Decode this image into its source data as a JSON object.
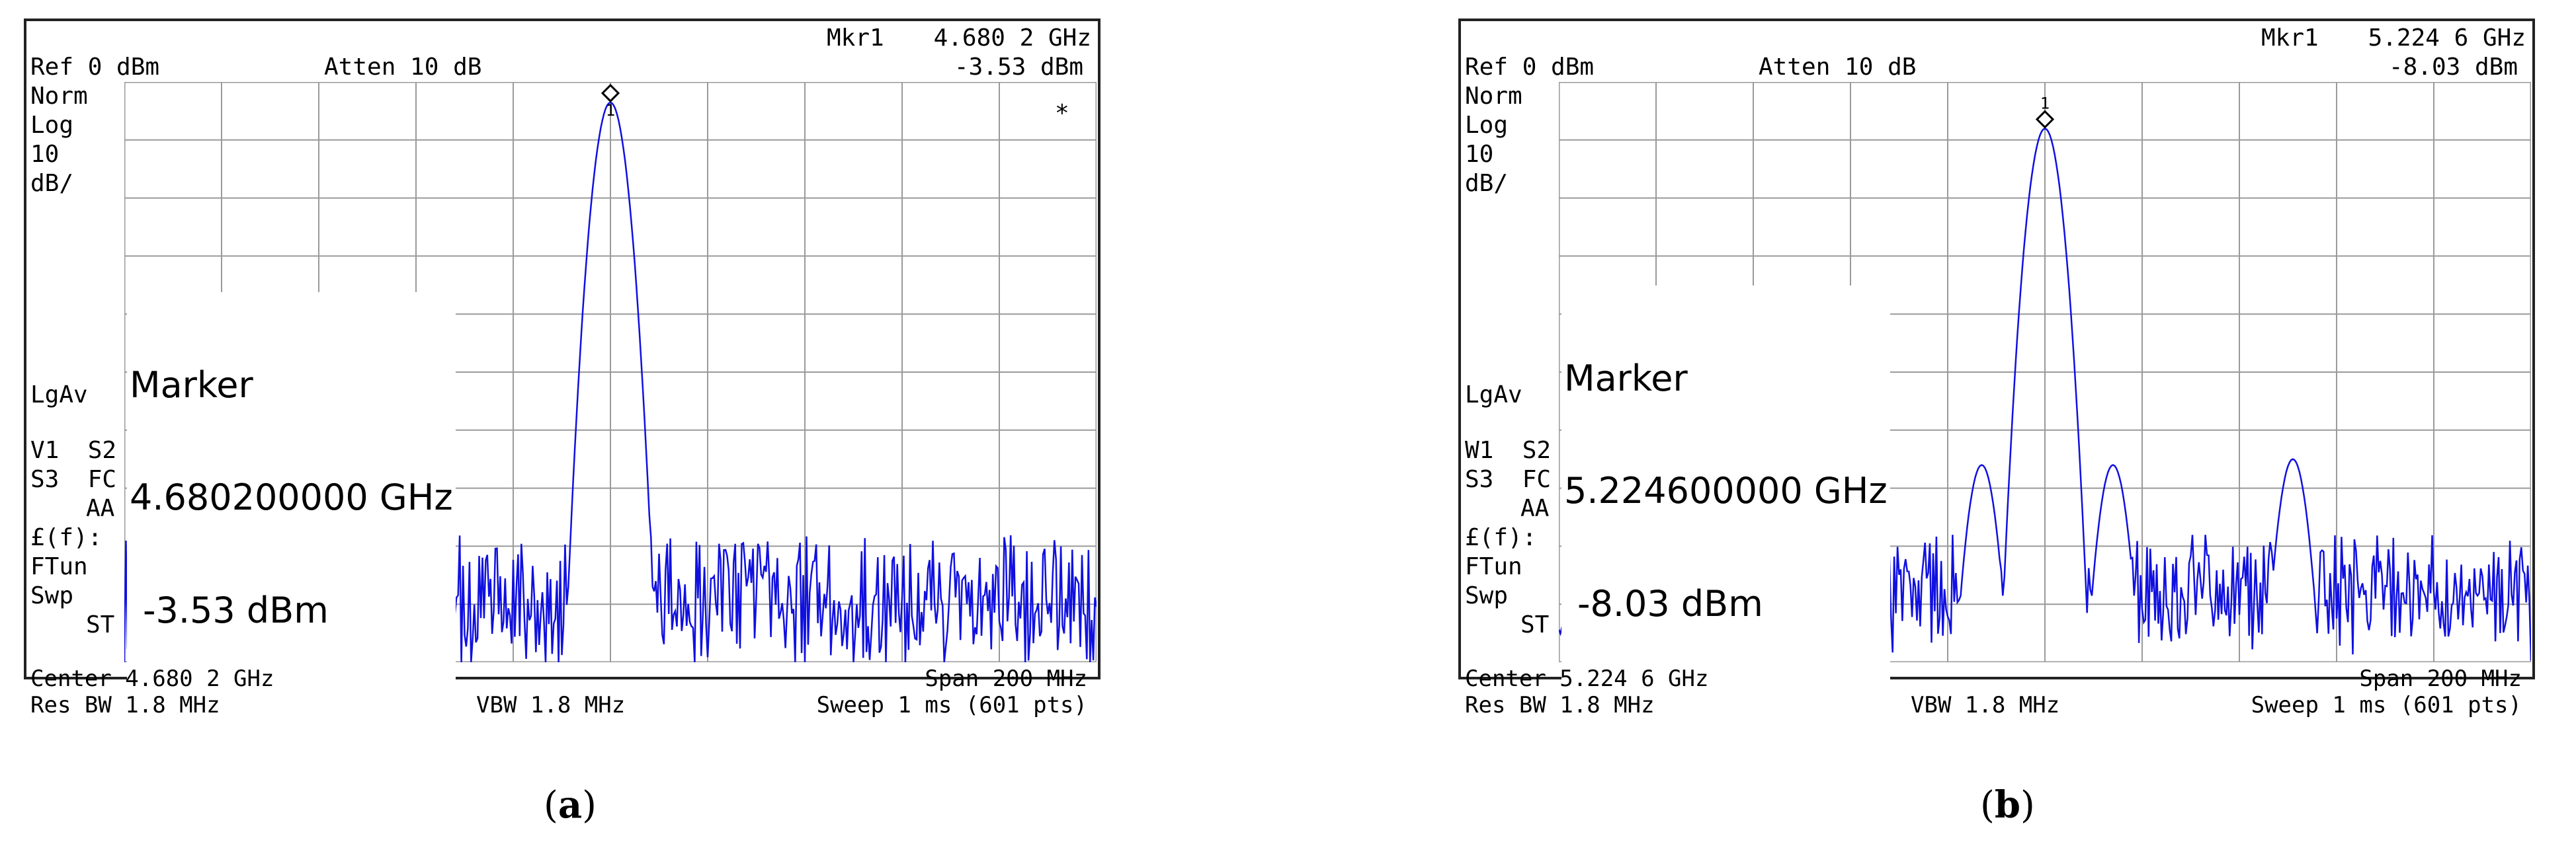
{
  "colors": {
    "trace": "#1010e0",
    "grid": "#9a9a9a",
    "frame": "#222222"
  },
  "panels": [
    {
      "mkr_label": "Mkr1",
      "mkr_freq": "4.680 2 GHz",
      "mkr_level": "-3.53 dBm",
      "ref": "Ref 0 dBm",
      "atten": "Atten 10 dB",
      "side": [
        "Norm",
        "Log",
        "10",
        "dB/",
        "LgAv",
        "V1  S2",
        "S3  FC",
        "AA",
        "£(f):",
        "FTun",
        "Swp",
        "ST"
      ],
      "star": "*",
      "marker_title": "Marker",
      "marker_freq": "4.680200000 GHz",
      "marker_level": "-3.53 dBm",
      "center": "Center 4.680 2 GHz",
      "span": "Span 200 MHz",
      "res_bw": "Res BW 1.8 MHz",
      "vbw": "VBW 1.8 MHz",
      "sweep": "Sweep 1 ms (601 pts)",
      "caption_letter": "a"
    },
    {
      "mkr_label": "Mkr1",
      "mkr_freq": "5.224 6 GHz",
      "mkr_level": "-8.03 dBm",
      "ref": "Ref 0 dBm",
      "atten": "Atten 10 dB",
      "side": [
        "Norm",
        "Log",
        "10",
        "dB/",
        "LgAv",
        "W1  S2",
        "S3  FC",
        "AA",
        "£(f):",
        "FTun",
        "Swp",
        "ST"
      ],
      "star": "",
      "marker_title": "Marker",
      "marker_freq": "5.224600000 GHz",
      "marker_level": "-8.03 dBm",
      "center": "Center 5.224 6 GHz",
      "span": "Span 200 MHz",
      "res_bw": "Res BW 1.8 MHz",
      "vbw": "VBW 1.8 MHz",
      "sweep": "Sweep 1 ms (601 pts)",
      "caption_letter": "b"
    }
  ],
  "chart_data": [
    {
      "type": "line",
      "xlabel": "",
      "ylabel": "",
      "x_range_mhz_offset": [
        -100,
        100
      ],
      "ylim": [
        -100,
        0
      ],
      "y_divisions_db": 10,
      "marker_x_offset_mhz": 0,
      "marker_value_dbm": -3.53,
      "peak_center_x": 0,
      "peak_width_mhz": 6,
      "noise_floor_dbm": -88,
      "noise_spread_db": 10,
      "sidelobes": [],
      "grid": true
    },
    {
      "type": "line",
      "xlabel": "",
      "ylabel": "",
      "x_range_mhz_offset": [
        -100,
        100
      ],
      "ylim": [
        -100,
        0
      ],
      "y_divisions_db": 10,
      "marker_x_offset_mhz": 0,
      "marker_value_dbm": -8.03,
      "peak_center_x": 0,
      "peak_width_mhz": 6,
      "noise_floor_dbm": -87,
      "noise_spread_db": 9,
      "sidelobes": [
        {
          "x": -51,
          "y": -65
        },
        {
          "x": -13,
          "y": -66
        },
        {
          "x": 14,
          "y": -66
        },
        {
          "x": 51,
          "y": -65
        }
      ],
      "grid": true
    }
  ]
}
